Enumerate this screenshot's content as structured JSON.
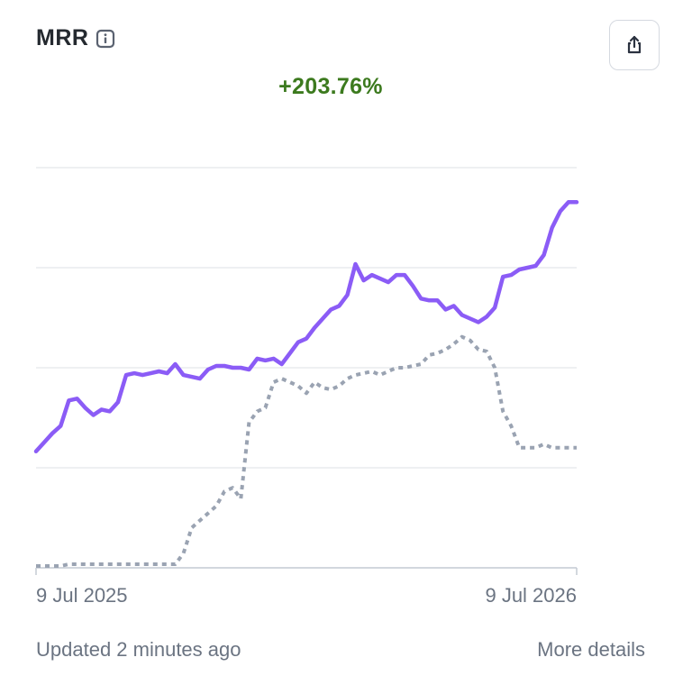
{
  "header": {
    "title": "MRR",
    "info_icon": "info-icon",
    "share_icon": "share-icon"
  },
  "summary": {
    "change": "+203.76%"
  },
  "chart_data": {
    "type": "line",
    "x_labels": [
      "9 Jul 2025",
      "9 Jul 2026"
    ],
    "grid": true,
    "series": [
      {
        "style": "solid",
        "color": "#8b5cf6",
        "values": [
          3.2,
          3.45,
          3.7,
          3.9,
          4.6,
          4.65,
          4.4,
          4.2,
          4.35,
          4.3,
          4.55,
          5.3,
          5.35,
          5.3,
          5.35,
          5.4,
          5.35,
          5.6,
          5.3,
          5.25,
          5.2,
          5.45,
          5.55,
          5.55,
          5.5,
          5.5,
          5.45,
          5.75,
          5.7,
          5.75,
          5.6,
          5.9,
          6.2,
          6.3,
          6.6,
          6.85,
          7.1,
          7.2,
          7.5,
          8.35,
          7.9,
          8.05,
          7.95,
          7.85,
          8.05,
          8.05,
          7.75,
          7.4,
          7.35,
          7.35,
          7.1,
          7.2,
          6.95,
          6.85,
          6.75,
          6.9,
          7.15,
          8.0,
          8.05,
          8.2,
          8.25,
          8.3,
          8.6,
          9.35,
          9.8,
          10.05,
          10.05
        ]
      },
      {
        "style": "dotted",
        "color": "#9aa3b2",
        "values": [
          0.05,
          0.05,
          0.05,
          0.05,
          0.1,
          0.1,
          0.1,
          0.1,
          0.1,
          0.1,
          0.1,
          0.1,
          0.1,
          0.1,
          0.1,
          0.1,
          0.1,
          0.1,
          0.4,
          1.1,
          1.3,
          1.5,
          1.7,
          2.1,
          2.2,
          1.9,
          4.0,
          4.3,
          4.4,
          5.1,
          5.2,
          5.1,
          5.0,
          4.8,
          5.1,
          4.95,
          4.9,
          5.0,
          5.2,
          5.3,
          5.35,
          5.4,
          5.3,
          5.4,
          5.5,
          5.5,
          5.55,
          5.6,
          5.85,
          5.9,
          6.0,
          6.15,
          6.35,
          6.25,
          6.0,
          5.95,
          5.5,
          4.3,
          3.9,
          3.3,
          3.3,
          3.3,
          3.4,
          3.3,
          3.3,
          3.3,
          3.3
        ]
      }
    ],
    "ylim": [
      0,
      11
    ]
  },
  "footer": {
    "updated": "Updated 2 minutes ago",
    "details": "More details"
  }
}
